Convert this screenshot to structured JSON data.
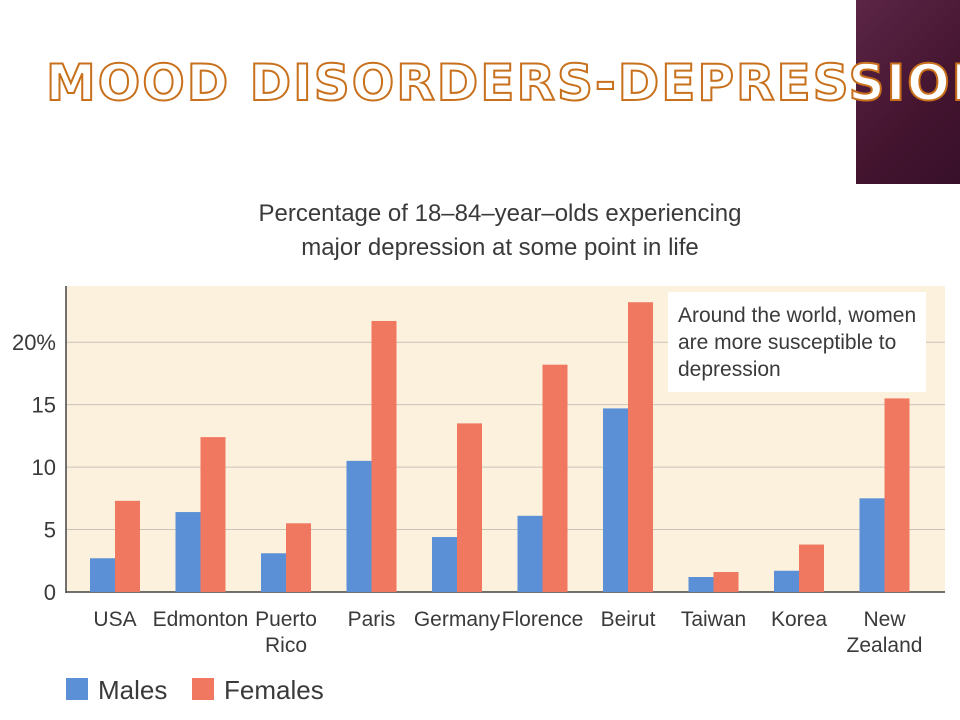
{
  "slide": {
    "title": "Mood Disorders-Depression"
  },
  "chart_data": {
    "type": "bar",
    "title_line1": "Percentage of 18–84–year–olds experiencing",
    "title_line2": "major depression at some point in life",
    "categories": [
      [
        "USA"
      ],
      [
        "Edmonton"
      ],
      [
        "Puerto",
        "Rico"
      ],
      [
        "Paris"
      ],
      [
        "Germany"
      ],
      [
        "Florence"
      ],
      [
        "Beirut"
      ],
      [
        "Taiwan"
      ],
      [
        "Korea"
      ],
      [
        "New",
        "Zealand"
      ]
    ],
    "series": [
      {
        "name": "Males",
        "color": "#5b8fd6",
        "values": [
          2.7,
          6.4,
          3.1,
          10.5,
          4.4,
          6.1,
          14.7,
          1.2,
          1.7,
          7.5
        ]
      },
      {
        "name": "Females",
        "color": "#f07860",
        "values": [
          7.3,
          12.4,
          5.5,
          21.7,
          13.5,
          18.2,
          23.2,
          1.6,
          3.8,
          15.5
        ]
      }
    ],
    "yticks": [
      0,
      5,
      10,
      15,
      20
    ],
    "ytick_labels": [
      "0",
      "5",
      "10",
      "15",
      "20%"
    ],
    "ylim": [
      0,
      24.5
    ],
    "grid": true,
    "background": "#fbf1dd",
    "annotation": [
      "Around the world, women",
      "are more susceptible to",
      "depression"
    ],
    "legend_position": "bottom-left"
  }
}
